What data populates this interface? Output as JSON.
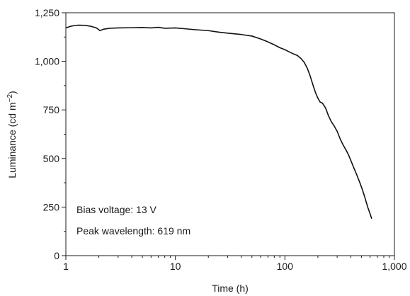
{
  "chart_data": {
    "type": "line",
    "xscale": "log",
    "xlim": [
      1,
      1000
    ],
    "ylim": [
      0,
      1250
    ],
    "xlabel": "Time (h)",
    "ylabel_main": "Luminance (cd m",
    "ylabel_sup": "−2",
    "ylabel_end": ")",
    "x_ticks": [
      {
        "value": 1,
        "label": "1"
      },
      {
        "value": 10,
        "label": "10"
      },
      {
        "value": 100,
        "label": "100"
      },
      {
        "value": 1000,
        "label": "1,000"
      }
    ],
    "y_ticks": [
      {
        "value": 0,
        "label": "0"
      },
      {
        "value": 250,
        "label": "250"
      },
      {
        "value": 500,
        "label": "500"
      },
      {
        "value": 750,
        "label": "750"
      },
      {
        "value": 1000,
        "label": "1,000"
      },
      {
        "value": 1250,
        "label": "1,250"
      }
    ],
    "y_minor_ticks": [
      125,
      375,
      625,
      875,
      1125
    ],
    "annotations": [
      {
        "text": "Bias voltage: 13 V"
      },
      {
        "text": "Peak wavelength: 619 nm"
      }
    ],
    "grid": false,
    "series": [
      {
        "color": "#111111",
        "x": [
          1.0,
          1.1,
          1.2,
          1.3,
          1.5,
          1.7,
          1.9,
          2.05,
          2.2,
          2.5,
          3.0,
          4.0,
          5.0,
          6.0,
          7.0,
          8.0,
          10.0,
          12.0,
          15.0,
          20.0,
          25.0,
          30.0,
          40.0,
          50.0,
          60.0,
          70.0,
          80.0,
          90.0,
          100.0,
          110.0,
          120.0,
          130.0,
          140.0,
          150.0,
          160.0,
          170.0,
          180.0,
          190.0,
          200.0,
          210.0,
          220.0,
          235.0,
          250.0,
          265.0,
          280.0,
          300.0,
          320.0,
          340.0,
          360.0,
          380.0,
          400.0,
          420.0,
          450.0,
          480.0,
          510.0,
          540.0,
          570.0,
          600.0,
          620.0
        ],
        "y": [
          1172,
          1180,
          1184,
          1186,
          1185,
          1180,
          1172,
          1158,
          1165,
          1170,
          1172,
          1173,
          1174,
          1172,
          1175,
          1170,
          1172,
          1168,
          1163,
          1158,
          1150,
          1145,
          1138,
          1130,
          1115,
          1100,
          1085,
          1070,
          1060,
          1048,
          1038,
          1030,
          1015,
          995,
          965,
          925,
          880,
          840,
          810,
          790,
          785,
          760,
          720,
          690,
          670,
          640,
          600,
          570,
          545,
          520,
          490,
          460,
          420,
          380,
          340,
          295,
          250,
          215,
          190
        ]
      }
    ]
  }
}
